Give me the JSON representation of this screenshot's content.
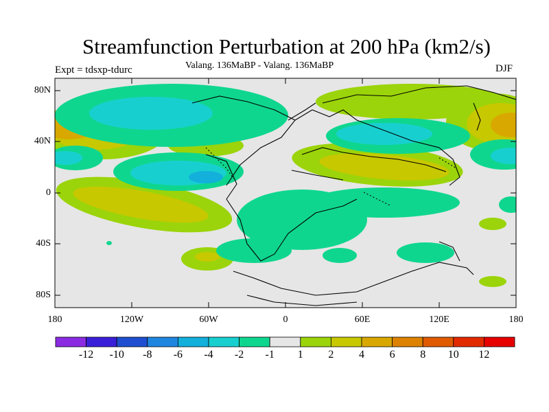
{
  "title": "Streamfunction Perturbation at 200 hPa (km2/s)",
  "subtitle": "Valang. 136MaBP - Valang.  136MaBP",
  "left_label": "Expt = tdsxp-tdurc",
  "right_label": "DJF",
  "lat_labels": [
    "80N",
    "40N",
    "0",
    "40S",
    "80S"
  ],
  "lon_labels": [
    "180",
    "120W",
    "60W",
    "0",
    "60E",
    "120E",
    "180"
  ],
  "colorbar": {
    "colors": [
      "#8a2be2",
      "#3a1fd8",
      "#1f4fd0",
      "#1f86e0",
      "#12b0da",
      "#18cfd0",
      "#0fd68f",
      "#e6e6e6",
      "#9bd40a",
      "#c7c800",
      "#d9a800",
      "#dd8200",
      "#df5a00",
      "#e22a00",
      "#e60000"
    ],
    "labels": [
      "-12",
      "-10",
      "-8",
      "-6",
      "-4",
      "-2",
      "-1",
      "1",
      "2",
      "4",
      "6",
      "8",
      "10",
      "12"
    ]
  }
}
